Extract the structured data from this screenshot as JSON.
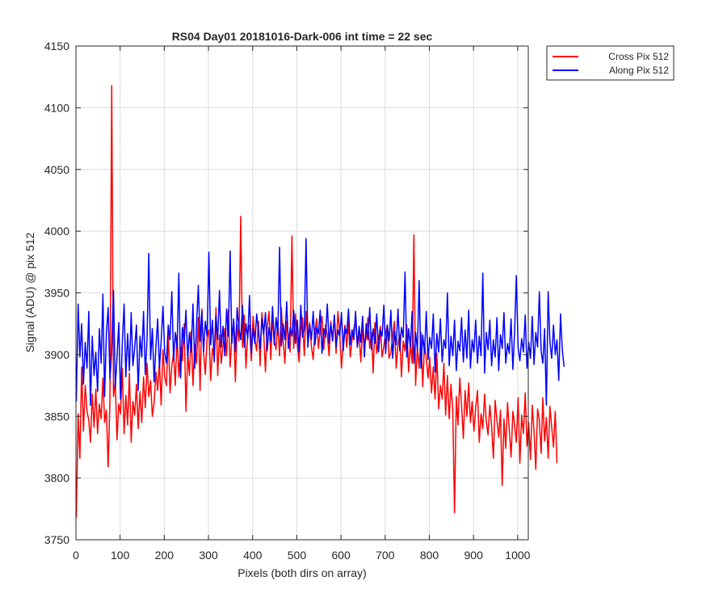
{
  "colors": {
    "cross": "#ff0000",
    "along": "#0000ff",
    "grid": "#dcdcdc",
    "axis": "#262626"
  },
  "chart_data": {
    "type": "line",
    "title": "RS04 Day01 20181016-Dark-006 int time = 22 sec",
    "xlabel": "Pixels (both dirs on array)",
    "ylabel": "Signal (ADU) @ pix 512",
    "xlim": [
      0,
      1024
    ],
    "ylim": [
      3750,
      4150
    ],
    "xticks": [
      0,
      100,
      200,
      300,
      400,
      500,
      600,
      700,
      800,
      900,
      1000
    ],
    "yticks": [
      3750,
      3800,
      3850,
      3900,
      3950,
      4000,
      4050,
      4100,
      4150
    ],
    "grid": true,
    "legend_position": "outside top-right",
    "x_start": 1,
    "x_step": 4,
    "series": [
      {
        "name": "Cross Pix 512",
        "color": "#ff0000",
        "values": [
          3768,
          3852,
          3816,
          3890,
          3838,
          3875,
          3854,
          3847,
          3829,
          3868,
          3841,
          3872,
          3836,
          3860,
          3848,
          3881,
          3845,
          3855,
          3809,
          3862,
          4118,
          3866,
          3878,
          3831,
          3860,
          3852,
          3889,
          3836,
          3867,
          3843,
          3885,
          3829,
          3862,
          3851,
          3876,
          3840,
          3870,
          3845,
          3882,
          3857,
          3893,
          3866,
          3879,
          3850,
          3861,
          3886,
          3871,
          3894,
          3859,
          3904,
          3882,
          3875,
          3918,
          3869,
          3891,
          3901,
          3875,
          3916,
          3882,
          3906,
          3895,
          3925,
          3854,
          3901,
          3883,
          3919,
          3875,
          3908,
          3893,
          3930,
          3871,
          3937,
          3902,
          3884,
          3914,
          3920,
          3879,
          3905,
          3898,
          3938,
          3883,
          3916,
          3893,
          3908,
          3921,
          3899,
          3936,
          3890,
          3913,
          3926,
          3878,
          3924,
          3911,
          4012,
          3906,
          3932,
          3889,
          3917,
          3924,
          3895,
          3931,
          3912,
          3903,
          3927,
          3891,
          3934,
          3918,
          3886,
          3922,
          3935,
          3896,
          3931,
          3912,
          3904,
          3927,
          3899,
          3938,
          3911,
          3893,
          3927,
          3915,
          3902,
          3996,
          3905,
          3933,
          3909,
          3894,
          3921,
          3930,
          3899,
          3935,
          3911,
          3926,
          3907,
          3896,
          3919,
          3929,
          3905,
          3921,
          3931,
          3904,
          3924,
          3916,
          3899,
          3927,
          3911,
          3932,
          3901,
          3935,
          3918,
          3889,
          3909,
          3924,
          3906,
          3927,
          3898,
          3912,
          3921,
          3928,
          3906,
          3917,
          3894,
          3922,
          3909,
          3913,
          3930,
          3905,
          3918,
          3885,
          3926,
          3901,
          3912,
          3923,
          3898,
          3907,
          3918,
          3924,
          3897,
          3902,
          3915,
          3927,
          3889,
          3909,
          3916,
          3882,
          3911,
          3903,
          3924,
          3886,
          3909,
          3893,
          3997,
          3875,
          3906,
          3889,
          3918,
          3874,
          3909,
          3897,
          3881,
          3898,
          3869,
          3890,
          3864,
          3901,
          3856,
          3875,
          3864,
          3893,
          3851,
          3883,
          3848,
          3876,
          3855,
          3772,
          3866,
          3843,
          3881,
          3859,
          3832,
          3871,
          3850,
          3877,
          3845,
          3862,
          3838,
          3857,
          3871,
          3829,
          3852,
          3840,
          3868,
          3846,
          3835,
          3859,
          3842,
          3816,
          3863,
          3847,
          3833,
          3855,
          3794,
          3848,
          3824,
          3861,
          3839,
          3817,
          3854,
          3843,
          3829,
          3865,
          3812,
          3851,
          3836,
          3869,
          3826,
          3845,
          3815,
          3859,
          3838,
          3807,
          3856,
          3847,
          3820,
          3865,
          3830,
          3849,
          3816,
          3858,
          3841,
          3825,
          3854,
          3812
        ]
      },
      {
        "name": "Along Pix 512",
        "color": "#0000ff",
        "values": [
          3862,
          3941,
          3898,
          3925,
          3876,
          3910,
          3889,
          3935,
          3859,
          3915,
          3883,
          3902,
          3870,
          3921,
          3893,
          3949,
          3866,
          3917,
          3938,
          3880,
          3904,
          3952,
          3873,
          3898,
          3926,
          3864,
          3909,
          3941,
          3882,
          3917,
          3887,
          3934,
          3891,
          3905,
          3924,
          3871,
          3915,
          3898,
          3935,
          3884,
          3912,
          3982,
          3896,
          3921,
          3878,
          3906,
          3929,
          3889,
          3911,
          3939,
          3901,
          3893,
          3924,
          3912,
          3951,
          3895,
          3918,
          3905,
          3966,
          3881,
          3922,
          3909,
          3936,
          3897,
          3918,
          3902,
          3941,
          3889,
          3924,
          3956,
          3911,
          3935,
          3902,
          3927,
          3915,
          3983,
          3908,
          3928,
          3894,
          3931,
          3912,
          3952,
          3906,
          3923,
          3899,
          3937,
          3915,
          3984,
          3909,
          3929,
          3902,
          3938,
          3921,
          3912,
          3940,
          3906,
          3925,
          3913,
          3948,
          3901,
          3921,
          3909,
          3933,
          3919,
          3905,
          3929,
          3916,
          3934,
          3903,
          3922,
          3911,
          3939,
          3908,
          3930,
          3916,
          3987,
          3907,
          3925,
          3912,
          3943,
          3905,
          3922,
          3915,
          3936,
          3909,
          3928,
          3902,
          3940,
          3914,
          3921,
          3994,
          3906,
          3924,
          3912,
          3935,
          3908,
          3922,
          3917,
          3936,
          3901,
          3921,
          3914,
          3941,
          3909,
          3925,
          3911,
          3932,
          3906,
          3920,
          3915,
          3934,
          3903,
          3922,
          3917,
          3937,
          3908,
          3920,
          3912,
          3935,
          3906,
          3923,
          3910,
          3931,
          3898,
          3925,
          3912,
          3938,
          3904,
          3921,
          3909,
          3933,
          3902,
          3920,
          3915,
          3940,
          3901,
          3924,
          3911,
          3936,
          3897,
          3919,
          3908,
          3937,
          3903,
          3922,
          3914,
          3967,
          3898,
          3921,
          3906,
          3935,
          3893,
          3918,
          3904,
          3960,
          3889,
          3916,
          3901,
          3935,
          3896,
          3914,
          3905,
          3933,
          3886,
          3917,
          3902,
          3929,
          3894,
          3912,
          3905,
          3950,
          3891,
          3915,
          3899,
          3928,
          3887,
          3911,
          3903,
          3930,
          3894,
          3920,
          3897,
          3936,
          3889,
          3912,
          3902,
          3928,
          3893,
          3915,
          3899,
          3966,
          3885,
          3918,
          3904,
          3928,
          3891,
          3912,
          3898,
          3930,
          3887,
          3916,
          3905,
          3934,
          3893,
          3909,
          3901,
          3929,
          3888,
          3917,
          3964,
          3906,
          3895,
          3913,
          3902,
          3932,
          3889,
          3910,
          3897,
          3931,
          3892,
          3918,
          3906,
          3951,
          3903,
          3893,
          3921,
          3859,
          3951,
          3910,
          3897,
          3924,
          3900,
          3912,
          3879,
          3933,
          3904,
          3890
        ]
      }
    ]
  }
}
